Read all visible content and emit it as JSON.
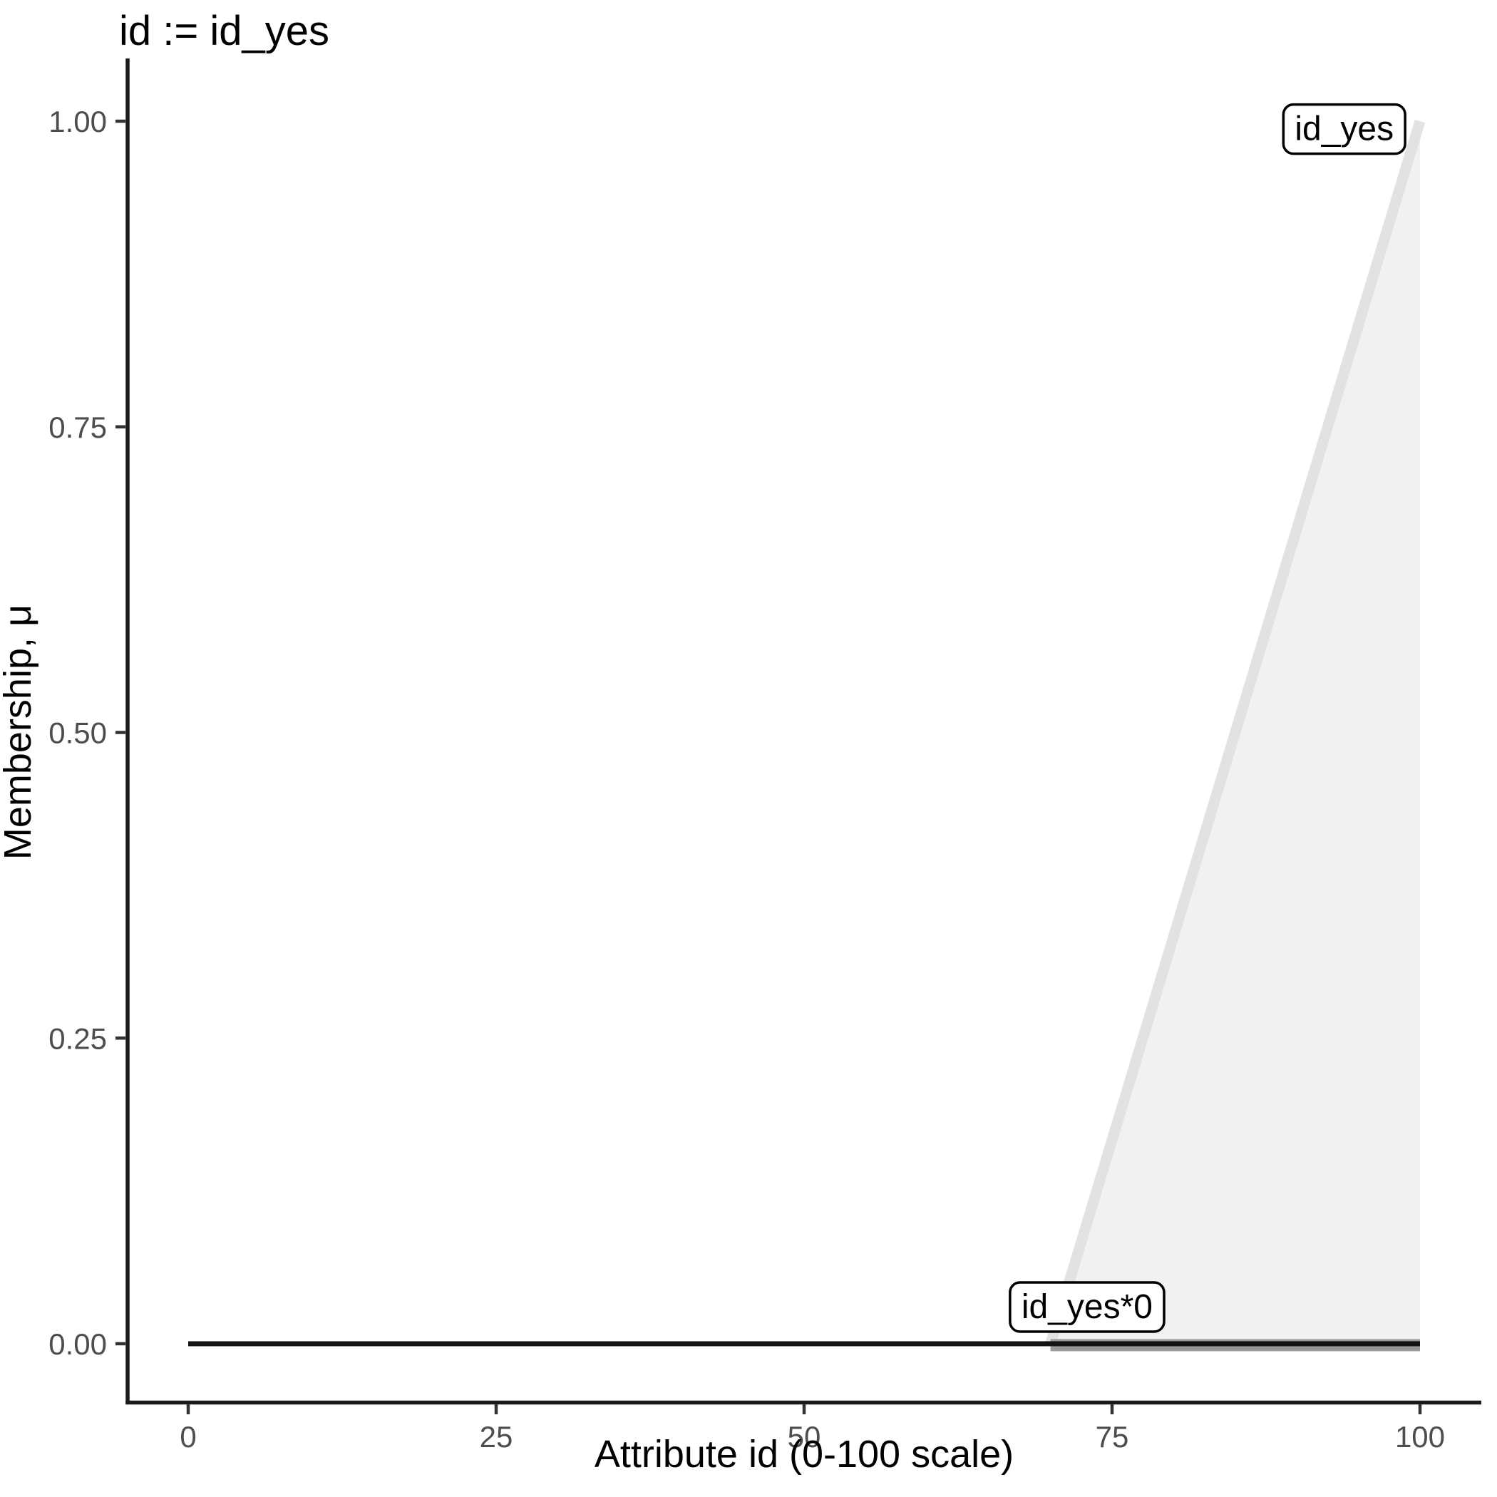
{
  "title": "id := id_yes",
  "chart_data": {
    "type": "area",
    "title": "id := id_yes",
    "xlabel": "Attribute id (0-100 scale)",
    "ylabel": "Membership, μ",
    "x_domain": [
      0,
      100
    ],
    "y_domain": [
      0,
      1
    ],
    "x_ticks": [
      {
        "value": 0,
        "label": "0"
      },
      {
        "value": 25,
        "label": "25"
      },
      {
        "value": 50,
        "label": "50"
      },
      {
        "value": 75,
        "label": "75"
      },
      {
        "value": 100,
        "label": "100"
      }
    ],
    "y_ticks": [
      {
        "value": 1.0,
        "label": "1.00"
      },
      {
        "value": 0.75,
        "label": "0.75"
      },
      {
        "value": 0.5,
        "label": "0.50"
      },
      {
        "value": 0.25,
        "label": "0.25"
      },
      {
        "value": 0.0,
        "label": "0.00"
      }
    ],
    "grid": false,
    "legend": "none",
    "series": [
      {
        "name": "id_yes",
        "role": "membership-term",
        "points": [
          [
            70,
            0
          ],
          [
            100,
            1
          ]
        ],
        "area_points": [
          [
            70,
            0
          ],
          [
            100,
            1
          ],
          [
            100,
            0
          ]
        ],
        "line_color": "#e2e2e2",
        "fill_color": "#f1f1f1"
      },
      {
        "name": "id_yes*0",
        "role": "activated-term",
        "points": [
          [
            70,
            0
          ],
          [
            100,
            0
          ]
        ],
        "line_color": "#9a9a9a"
      },
      {
        "name": "zero-baseline",
        "role": "baseline",
        "points": [
          [
            0,
            0
          ],
          [
            100,
            0
          ]
        ],
        "line_color": "#141414"
      }
    ],
    "annotations": [
      {
        "text": "id_yes",
        "x": 93.85,
        "y": 0.9935
      },
      {
        "text": "id_yes*0",
        "x": 72.97,
        "y": 0.03
      }
    ],
    "colors": {
      "axis_line": "#1a1a1a",
      "tick_mark": "#333333",
      "tick_label": "#4d4d4d",
      "annotation_border": "#000000",
      "annotation_fill": "#ffffff",
      "background": "#ffffff"
    }
  }
}
